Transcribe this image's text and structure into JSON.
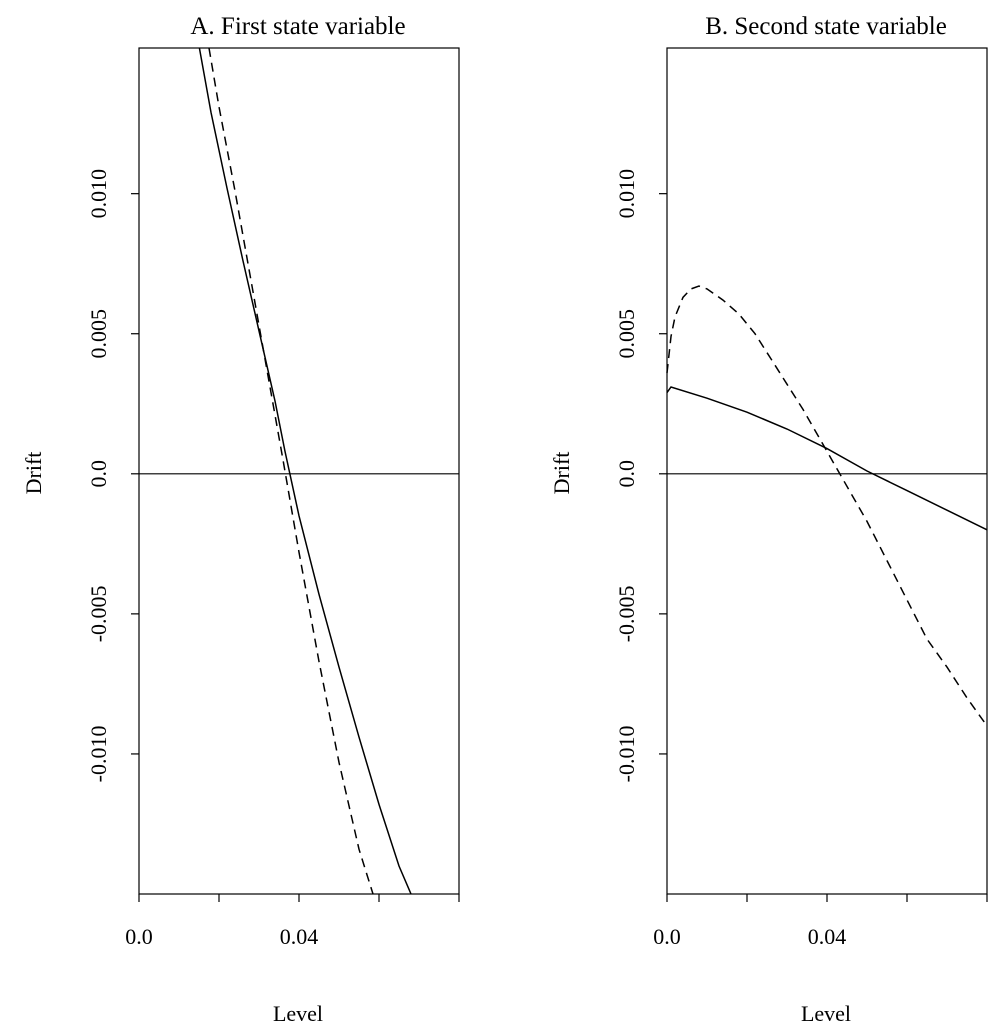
{
  "chart_data": [
    {
      "type": "line",
      "title": "A.  First state variable",
      "xlabel": "Level",
      "ylabel": "Drift",
      "xlim": [
        0.0,
        0.08
      ],
      "ylim": [
        -0.015,
        0.0152
      ],
      "xticks": [
        0.0,
        0.02,
        0.04,
        0.06,
        0.08
      ],
      "xtick_labels": [
        "0.0",
        "",
        "0.04",
        "",
        ""
      ],
      "yticks": [
        -0.01,
        -0.005,
        0.0,
        0.005,
        0.01
      ],
      "ytick_labels": [
        "-0.010",
        "-0.005",
        "0.0",
        "0.005",
        "0.010"
      ],
      "hline": 0.0,
      "series": [
        {
          "style": "solid",
          "x": [
            0.0151,
            0.018,
            0.022,
            0.026,
            0.03,
            0.034,
            0.0365,
            0.04,
            0.045,
            0.05,
            0.055,
            0.06,
            0.065,
            0.068
          ],
          "y": [
            0.0152,
            0.0129,
            0.0102,
            0.0076,
            0.0051,
            0.0026,
            0.0008,
            -0.0015,
            -0.0043,
            -0.0069,
            -0.0094,
            -0.0118,
            -0.014,
            -0.015
          ]
        },
        {
          "style": "dashed",
          "x": [
            0.0175,
            0.02,
            0.024,
            0.028,
            0.032,
            0.036,
            0.04,
            0.045,
            0.05,
            0.055,
            0.0585
          ],
          "y": [
            0.0152,
            0.0131,
            0.0101,
            0.0069,
            0.0037,
            0.0005,
            -0.0028,
            -0.0067,
            -0.0103,
            -0.0134,
            -0.015
          ]
        }
      ]
    },
    {
      "type": "line",
      "title": "B.  Second state variable",
      "xlabel": "Level",
      "ylabel": "Drift",
      "xlim": [
        0.0,
        0.08
      ],
      "ylim": [
        -0.015,
        0.0152
      ],
      "xticks": [
        0.0,
        0.02,
        0.04,
        0.06,
        0.08
      ],
      "xtick_labels": [
        "0.0",
        "",
        "0.04",
        "",
        ""
      ],
      "yticks": [
        -0.01,
        -0.005,
        0.0,
        0.005,
        0.01
      ],
      "ytick_labels": [
        "-0.010",
        "-0.005",
        "0.0",
        "0.005",
        "0.010"
      ],
      "hline": 0.0,
      "series": [
        {
          "style": "solid",
          "x": [
            0.0,
            0.001,
            0.01,
            0.02,
            0.03,
            0.04,
            0.05,
            0.06,
            0.07,
            0.08
          ],
          "y": [
            0.0029,
            0.0031,
            0.0027,
            0.0022,
            0.0016,
            0.0009,
            0.0001,
            -0.0006,
            -0.0013,
            -0.002
          ]
        },
        {
          "style": "dashed",
          "x": [
            0.0,
            0.001,
            0.002,
            0.004,
            0.006,
            0.008,
            0.01,
            0.014,
            0.018,
            0.022,
            0.026,
            0.03,
            0.034,
            0.038,
            0.042,
            0.046,
            0.05,
            0.055,
            0.06,
            0.065,
            0.07,
            0.075,
            0.08
          ],
          "y": [
            0.0036,
            0.0049,
            0.0056,
            0.0063,
            0.0066,
            0.0067,
            0.0066,
            0.0062,
            0.0057,
            0.005,
            0.0041,
            0.0032,
            0.0023,
            0.0013,
            0.0003,
            -0.0007,
            -0.0017,
            -0.0031,
            -0.0045,
            -0.0059,
            -0.0069,
            -0.008,
            -0.009
          ]
        }
      ]
    }
  ]
}
